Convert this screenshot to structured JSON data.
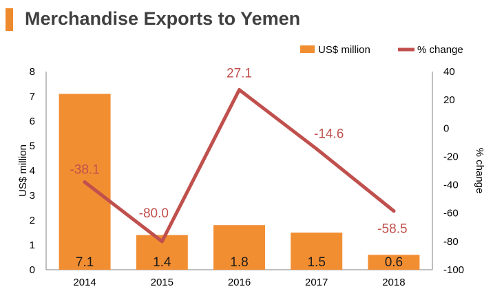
{
  "title": "Merchandise Exports to Yemen",
  "colors": {
    "bar": "#f28e32",
    "line": "#c0504d",
    "accent": "#ee8a2e",
    "axis": "#7f7f7f"
  },
  "chart_data": {
    "type": "bar",
    "categories": [
      "2014",
      "2015",
      "2016",
      "2017",
      "2018"
    ],
    "series": [
      {
        "name": "US$ million",
        "type": "bar",
        "axis": "left",
        "values": [
          7.1,
          1.4,
          1.8,
          1.5,
          0.6
        ],
        "labels": [
          "7.1",
          "1.4",
          "1.8",
          "1.5",
          "0.6"
        ]
      },
      {
        "name": "% change",
        "type": "line",
        "axis": "right",
        "values": [
          -38.1,
          -80.0,
          27.1,
          -14.6,
          -58.5
        ],
        "labels": [
          "-38.1",
          "-80.0",
          "27.1",
          "-14.6",
          "-58.5"
        ]
      }
    ],
    "ylabel": "US$ million",
    "y2label": "% change",
    "ylim": [
      0,
      8
    ],
    "y2lim": [
      -100,
      40
    ],
    "yticks": [
      "0",
      "1",
      "2",
      "3",
      "4",
      "5",
      "6",
      "7",
      "8"
    ],
    "y2ticks": [
      "-100",
      "-80",
      "-60",
      "-40",
      "-20",
      "0",
      "20",
      "40"
    ],
    "legend_position": "top-right",
    "grid": false
  }
}
